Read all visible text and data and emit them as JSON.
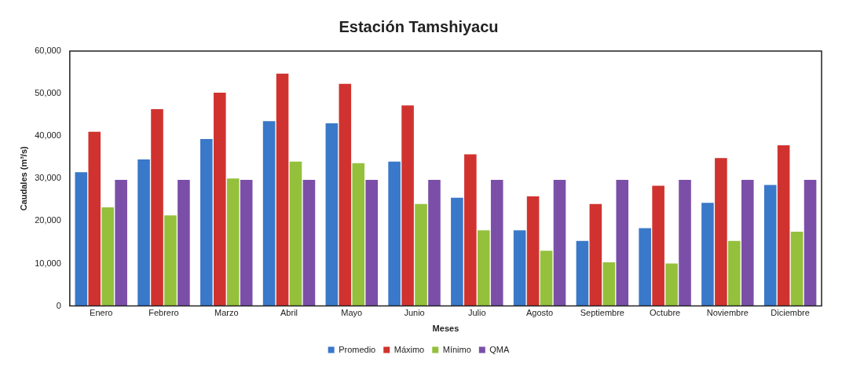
{
  "chart_data": {
    "type": "bar",
    "title": "Estación Tamshiyacu",
    "xlabel": "Meses",
    "ylabel": "Caudales (m³/s)",
    "categories": [
      "Enero",
      "Febrero",
      "Marzo",
      "Abril",
      "Mayo",
      "Junio",
      "Julio",
      "Agosto",
      "Septiembre",
      "Octubre",
      "Noviembre",
      "Diciembre"
    ],
    "series": [
      {
        "name": "Promedio",
        "color": "#3a78c9",
        "values": [
          31500,
          34500,
          39300,
          43500,
          43000,
          34000,
          25500,
          17800,
          15300,
          18300,
          24300,
          28500
        ]
      },
      {
        "name": "Máximo",
        "color": "#d0332f",
        "values": [
          41000,
          46300,
          50200,
          54700,
          52300,
          47200,
          35700,
          25800,
          24000,
          28300,
          34800,
          37800
        ]
      },
      {
        "name": "Mínimo",
        "color": "#94c03c",
        "values": [
          23200,
          21300,
          30000,
          34000,
          33600,
          24000,
          17800,
          13000,
          10300,
          10000,
          15300,
          17500
        ]
      },
      {
        "name": "QMA",
        "color": "#7b4fa8",
        "values": [
          29700,
          29700,
          29700,
          29700,
          29700,
          29700,
          29700,
          29700,
          29700,
          29700,
          29700,
          29700
        ]
      }
    ],
    "ylim": [
      0,
      60000
    ],
    "yticks": [
      {
        "value": 0,
        "label": "0"
      },
      {
        "value": 10000,
        "label": "10,000"
      },
      {
        "value": 20000,
        "label": "20,000"
      },
      {
        "value": 30000,
        "label": "30,000"
      },
      {
        "value": 40000,
        "label": "40,000"
      },
      {
        "value": 50000,
        "label": "50,000"
      },
      {
        "value": 60000,
        "label": "60,000"
      }
    ],
    "grid": false,
    "legend": "bottom"
  }
}
